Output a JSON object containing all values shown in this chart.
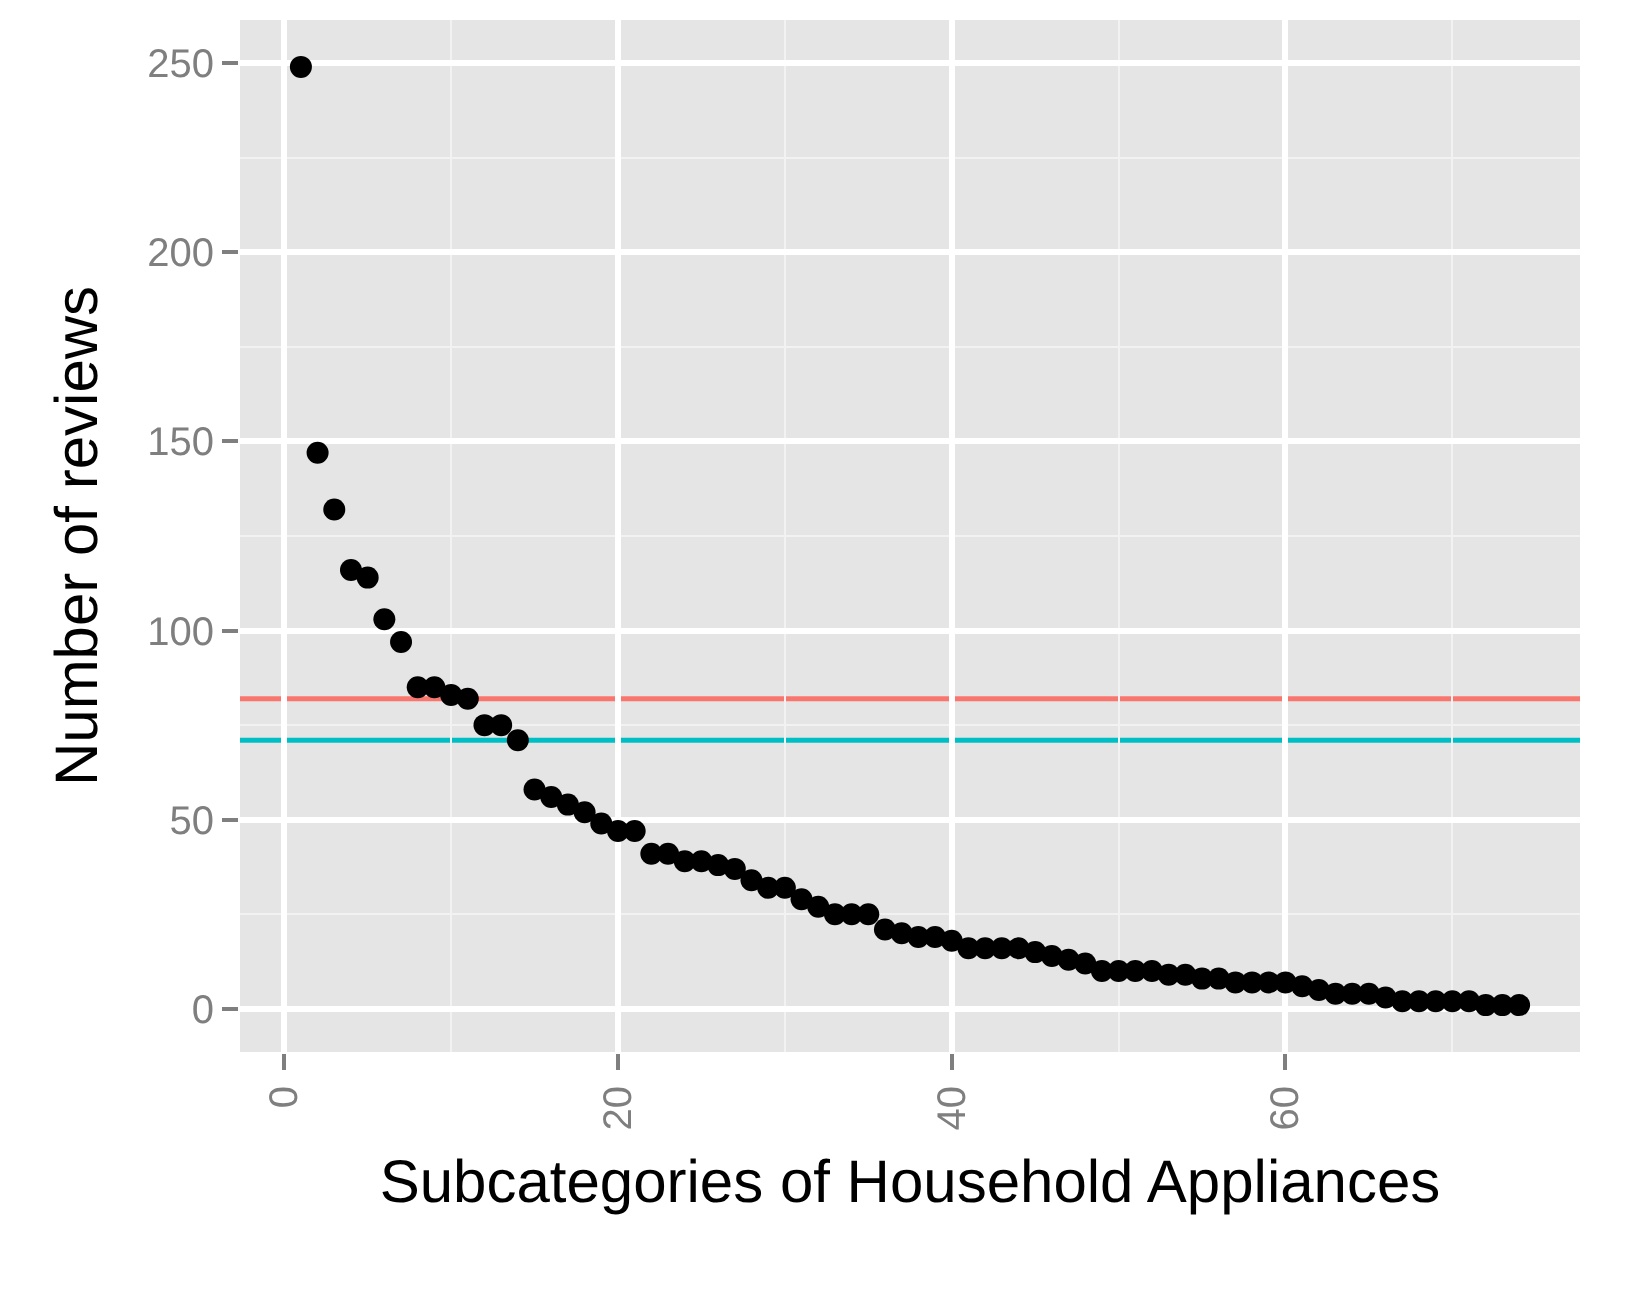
{
  "chart_data": {
    "type": "scatter",
    "xlabel": "Subcategories of Household Appliances",
    "ylabel": "Number of reviews",
    "x": [
      1,
      2,
      3,
      4,
      5,
      6,
      7,
      8,
      9,
      10,
      11,
      12,
      13,
      14,
      15,
      16,
      17,
      18,
      19,
      20,
      21,
      22,
      23,
      24,
      25,
      26,
      27,
      28,
      29,
      30,
      31,
      32,
      33,
      34,
      35,
      36,
      37,
      38,
      39,
      40,
      41,
      42,
      43,
      44,
      45,
      46,
      47,
      48,
      49,
      50,
      51,
      52,
      53,
      54,
      55,
      56,
      57,
      58,
      59,
      60,
      61,
      62,
      63,
      64,
      65,
      66,
      67,
      68,
      69,
      70,
      71,
      72,
      73,
      74
    ],
    "series": [
      {
        "color": "#000000",
        "values": [
          249,
          147,
          132,
          116,
          114,
          103,
          97,
          85,
          85,
          83,
          82,
          75,
          75,
          71,
          58,
          56,
          54,
          52,
          49,
          47,
          47,
          41,
          41,
          39,
          39,
          38,
          37,
          34,
          32,
          32,
          29,
          27,
          25,
          25,
          25,
          21,
          20,
          19,
          19,
          18,
          16,
          16,
          16,
          16,
          15,
          14,
          13,
          12,
          10,
          10,
          10,
          10,
          9,
          9,
          8,
          8,
          7,
          7,
          7,
          7,
          6,
          5,
          4,
          4,
          4,
          3,
          2,
          2,
          2,
          2,
          2,
          1,
          1,
          1
        ]
      }
    ],
    "xlim": [
      -2.65,
      77.65
    ],
    "ylim": [
      -11.4,
      261.4
    ],
    "xticks": [
      0,
      20,
      40,
      60
    ],
    "yticks": [
      0,
      50,
      100,
      150,
      200,
      250
    ],
    "ref_lines": [
      {
        "axis": "y",
        "value": 82,
        "color": "#f8766d"
      },
      {
        "axis": "y",
        "value": 71,
        "color": "#00bfc4"
      }
    ],
    "grid": true,
    "marker": "circle"
  }
}
